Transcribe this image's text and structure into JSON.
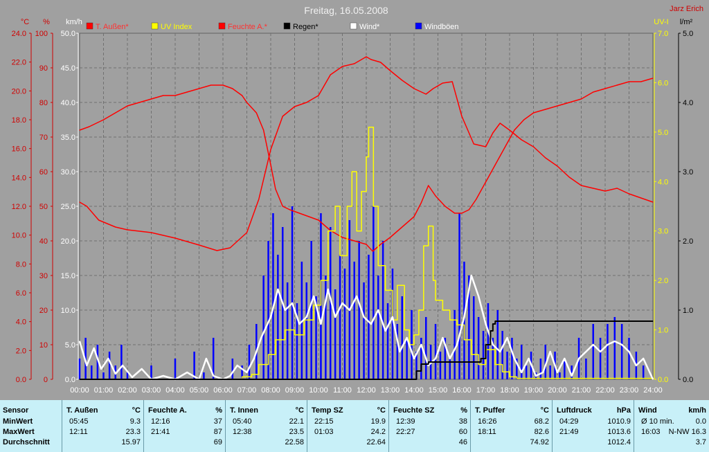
{
  "chart_data": {
    "type": "line",
    "title": "Freitag, 16.05.2008",
    "corner_label": "Jarz Erich",
    "x_ticks": [
      "00:00",
      "01:00",
      "02:00",
      "03:00",
      "04:00",
      "05:00",
      "06:00",
      "07:00",
      "08:00",
      "09:00",
      "10:00",
      "11:00",
      "12:00",
      "13:00",
      "14:00",
      "15:00",
      "16:00",
      "17:00",
      "18:00",
      "19:00",
      "20:00",
      "21:00",
      "22:00",
      "23:00",
      "24:00"
    ],
    "x_range": [
      0,
      24
    ],
    "axes": [
      {
        "id": "temp",
        "unit": "°C",
        "range": [
          0,
          25
        ],
        "ticks": [
          "0.0",
          "2.0",
          "4.0",
          "6.0",
          "8.0",
          "10.0",
          "12.0",
          "14.0",
          "16.0",
          "18.0",
          "20.0",
          "22.0",
          "24.0"
        ],
        "color": "#d00000"
      },
      {
        "id": "pct",
        "unit": "%",
        "range": [
          0,
          100
        ],
        "ticks": [
          "0",
          "10",
          "20",
          "30",
          "40",
          "50",
          "60",
          "70",
          "80",
          "90",
          "100"
        ],
        "color": "#d00000"
      },
      {
        "id": "wind",
        "unit": "km/h",
        "range": [
          0,
          50
        ],
        "ticks": [
          "0.0",
          "5.0",
          "10.0",
          "15.0",
          "20.0",
          "25.0",
          "30.0",
          "35.0",
          "40.0",
          "45.0",
          "50.0"
        ],
        "color": "#ffffff"
      },
      {
        "id": "uv",
        "unit": "UV-I",
        "range": [
          0,
          7
        ],
        "ticks": [
          "0.0",
          "1.0",
          "2.0",
          "3.0",
          "4.0",
          "5.0",
          "6.0",
          "7.0"
        ],
        "color": "#ffff00"
      },
      {
        "id": "rain",
        "unit": "l/m²",
        "range": [
          0,
          5
        ],
        "ticks": [
          "0.0",
          "1.0",
          "2.0",
          "3.0",
          "4.0",
          "5.0"
        ],
        "color": "#000000"
      }
    ],
    "legend": [
      {
        "label": "T. Außen*",
        "color": "#ff0000",
        "text_color": "#ff3030"
      },
      {
        "label": "UV Index",
        "color": "#ffff00",
        "text_color": "#ffff00"
      },
      {
        "label": "Feuchte A.*",
        "color": "#ff0000",
        "text_color": "#ff3030"
      },
      {
        "label": "Regen*",
        "color": "#000000",
        "text_color": "#000000"
      },
      {
        "label": "Wind*",
        "color": "#ffffff",
        "text_color": "#ffffff"
      },
      {
        "label": "Windböen",
        "color": "#0000ff",
        "text_color": "#ffffff"
      }
    ],
    "series": [
      {
        "name": "T. Außen*",
        "axis": "temp",
        "color": "#ff0000",
        "style": "line",
        "x": [
          0,
          0.3,
          0.8,
          1.5,
          2,
          3,
          4,
          5,
          5.75,
          6.3,
          7,
          7.5,
          8,
          8.5,
          9,
          9.5,
          10,
          10.5,
          11,
          11.5,
          12,
          12.2,
          12.6,
          13,
          13.5,
          14,
          14.5,
          14.8,
          15.2,
          15.6,
          16,
          16.5,
          17,
          17.3,
          17.6,
          18,
          18.5,
          19,
          19.5,
          20,
          20.5,
          21,
          21.5,
          22,
          22.5,
          23,
          23.5,
          24
        ],
        "y": [
          12.8,
          12.5,
          11.5,
          11.0,
          10.8,
          10.6,
          10.2,
          9.7,
          9.3,
          9.5,
          10.6,
          13.0,
          16.6,
          19.0,
          19.7,
          20.0,
          20.5,
          22.0,
          22.6,
          22.8,
          23.3,
          23.1,
          22.9,
          22.3,
          21.6,
          21.0,
          20.6,
          21.0,
          21.4,
          21.5,
          19.0,
          17.0,
          16.8,
          17.8,
          18.5,
          18.0,
          17.3,
          16.8,
          16.0,
          15.4,
          14.6,
          14.0,
          13.8,
          13.6,
          13.8,
          13.4,
          13.1,
          12.8
        ]
      },
      {
        "name": "UV Index",
        "axis": "uv",
        "color": "#ffff00",
        "style": "step",
        "x": [
          0,
          6.8,
          7.2,
          7.5,
          7.9,
          8.2,
          8.6,
          9.0,
          9.4,
          9.8,
          10.1,
          10.4,
          10.7,
          10.9,
          11.2,
          11.4,
          11.6,
          11.8,
          12.0,
          12.1,
          12.3,
          12.5,
          12.8,
          13.1,
          13.3,
          13.6,
          13.8,
          14.0,
          14.2,
          14.4,
          14.6,
          14.8,
          14.9,
          15.2,
          15.5,
          15.8,
          16.1,
          16.4,
          16.7,
          17.0,
          17.4,
          17.7,
          18.0,
          18.3,
          24
        ],
        "y": [
          0,
          0.05,
          0.1,
          0.3,
          0.5,
          0.8,
          1.0,
          0.9,
          1.2,
          1.5,
          2.0,
          3.0,
          3.5,
          2.5,
          3.5,
          4.2,
          3.0,
          3.8,
          4.5,
          5.1,
          3.5,
          2.3,
          1.8,
          1.2,
          1.9,
          1.0,
          0.7,
          0.9,
          1.4,
          2.7,
          3.1,
          2.0,
          1.6,
          1.4,
          1.2,
          1.1,
          0.8,
          0.5,
          0.3,
          0.6,
          0.3,
          0.15,
          0.05,
          0.02,
          0
        ]
      },
      {
        "name": "Feuchte A.*",
        "axis": "pct",
        "color": "#ff0000",
        "style": "line",
        "x": [
          0,
          0.4,
          1,
          1.5,
          2,
          2.5,
          3,
          3.5,
          4,
          4.5,
          5,
          5.5,
          6,
          6.4,
          6.8,
          7,
          7.4,
          7.7,
          8,
          8.2,
          8.5,
          8.8,
          9.2,
          9.6,
          10,
          10.5,
          11,
          11.5,
          12,
          12.27,
          12.6,
          13,
          13.5,
          14,
          14.3,
          14.6,
          14.9,
          15.3,
          15.7,
          16.0,
          16.3,
          16.6,
          17,
          17.4,
          17.8,
          18.2,
          18.6,
          19,
          19.5,
          20,
          20.5,
          21,
          21.5,
          22,
          22.5,
          23,
          23.5,
          24
        ],
        "y": [
          72,
          73,
          75,
          77,
          79,
          80,
          81,
          82,
          82,
          83,
          84,
          85,
          85,
          84,
          82,
          80,
          77,
          72,
          62,
          55,
          50,
          49,
          48,
          47,
          46,
          43,
          41,
          40,
          39,
          37,
          39,
          41,
          44,
          47,
          51,
          56,
          53,
          50,
          48,
          48,
          49,
          52,
          57,
          62,
          67,
          72,
          75,
          77,
          78,
          79,
          80,
          81,
          83,
          84,
          85,
          86,
          86,
          87
        ]
      },
      {
        "name": "Regen*",
        "axis": "rain",
        "color": "#000000",
        "style": "step",
        "x": [
          0,
          14.1,
          14.3,
          14.6,
          15.0,
          15.5,
          16.0,
          16.5,
          16.8,
          17.0,
          17.2,
          17.3,
          17.4,
          24
        ],
        "y": [
          0,
          0.12,
          0.22,
          0.25,
          0.25,
          0.25,
          0.25,
          0.25,
          0.3,
          0.5,
          0.7,
          0.8,
          0.84,
          0.84
        ]
      },
      {
        "name": "Wind*",
        "axis": "wind",
        "color": "#ffffff",
        "style": "line",
        "x": [
          0,
          0.3,
          0.6,
          0.9,
          1.2,
          1.5,
          1.8,
          2.2,
          2.6,
          3.0,
          3.5,
          4.0,
          4.5,
          5.0,
          5.3,
          5.6,
          6.0,
          6.3,
          6.6,
          7.0,
          7.3,
          7.6,
          8.0,
          8.3,
          8.6,
          8.9,
          9.2,
          9.5,
          9.8,
          10.1,
          10.4,
          10.7,
          11.0,
          11.3,
          11.6,
          11.9,
          12.2,
          12.5,
          12.8,
          13.1,
          13.4,
          13.7,
          14.0,
          14.3,
          14.6,
          14.9,
          15.2,
          15.5,
          15.8,
          16.1,
          16.4,
          16.7,
          17.0,
          17.3,
          17.6,
          17.9,
          18.2,
          18.5,
          18.8,
          19.1,
          19.4,
          19.7,
          20.0,
          20.3,
          20.6,
          20.9,
          21.2,
          21.5,
          21.8,
          22.1,
          22.4,
          22.7,
          23.0,
          23.3,
          23.6,
          24
        ],
        "y": [
          5.5,
          2,
          4.5,
          1.5,
          3,
          0.8,
          2,
          0.3,
          1.5,
          0,
          0.5,
          0,
          1,
          0,
          3,
          0.5,
          0,
          0.5,
          2,
          1,
          3,
          6,
          9,
          13,
          10,
          11,
          8,
          9,
          12,
          8,
          13,
          9,
          11,
          10,
          12,
          9,
          8,
          10,
          7,
          9,
          4,
          6,
          3,
          5,
          2,
          3,
          6,
          3,
          5,
          9,
          15,
          12,
          8,
          5,
          4,
          6,
          3,
          1,
          3,
          0.5,
          1,
          4,
          1,
          3,
          0.5,
          3,
          4,
          5,
          4,
          5,
          5.5,
          5,
          4,
          2,
          3,
          0
        ]
      },
      {
        "name": "Windböen",
        "axis": "wind",
        "color": "#0000ff",
        "style": "spikes",
        "x": [
          0,
          0.25,
          0.5,
          0.75,
          1,
          1.25,
          1.5,
          1.75,
          2,
          2.5,
          3,
          3.5,
          4,
          4.5,
          4.8,
          5.2,
          5.6,
          6,
          6.4,
          6.8,
          7.1,
          7.4,
          7.7,
          7.9,
          8.1,
          8.3,
          8.5,
          8.7,
          8.9,
          9.1,
          9.3,
          9.5,
          9.7,
          9.9,
          10.1,
          10.3,
          10.5,
          10.7,
          10.9,
          11.1,
          11.3,
          11.5,
          11.7,
          11.9,
          12.1,
          12.3,
          12.5,
          12.7,
          12.9,
          13.1,
          13.3,
          13.5,
          13.7,
          13.9,
          14.1,
          14.3,
          14.5,
          14.7,
          14.9,
          15.1,
          15.3,
          15.5,
          15.7,
          15.9,
          16.1,
          16.3,
          16.5,
          16.7,
          16.9,
          17.1,
          17.3,
          17.5,
          17.7,
          17.9,
          18.1,
          18.3,
          18.5,
          18.7,
          18.9,
          19.1,
          19.3,
          19.5,
          19.7,
          19.9,
          20.1,
          20.3,
          20.6,
          20.9,
          21.2,
          21.5,
          21.8,
          22.1,
          22.4,
          22.7,
          23.0,
          23.3,
          23.6,
          24
        ],
        "y": [
          3,
          6,
          2,
          5,
          1,
          4,
          2,
          5,
          1,
          0,
          2,
          0,
          3,
          0,
          4,
          1,
          6,
          0,
          3,
          2,
          5,
          8,
          15,
          20,
          24,
          18,
          22,
          14,
          25,
          11,
          17,
          14,
          20,
          12,
          24,
          15,
          22,
          13,
          18,
          16,
          23,
          17,
          20,
          14,
          18,
          25,
          15,
          20,
          11,
          16,
          8,
          12,
          6,
          10,
          4,
          6,
          9,
          5,
          8,
          4,
          6,
          3,
          10,
          24,
          17,
          15,
          12,
          9,
          7,
          11,
          6,
          10,
          7,
          4,
          6,
          3,
          5,
          2,
          4,
          1,
          3,
          5,
          2,
          4,
          1,
          3,
          2,
          6,
          3,
          8,
          6,
          8,
          9,
          8,
          6,
          4,
          2,
          0
        ]
      }
    ],
    "grid": true,
    "legend_position": "top"
  },
  "stats": {
    "row_labels": {
      "min": "MinWert",
      "max": "MaxWert",
      "avg": "Durchschnitt"
    },
    "sensor_header": "Sensor",
    "columns": [
      {
        "name": "T. Außen",
        "unit": "°C",
        "min_time": "05:45",
        "min_val": "9.3",
        "max_time": "12:11",
        "max_val": "23.3",
        "avg": "15.97"
      },
      {
        "name": "Feuchte A.",
        "unit": "%",
        "min_time": "12:16",
        "min_val": "37",
        "max_time": "21:41",
        "max_val": "87",
        "avg": "69"
      },
      {
        "name": "T. Innen",
        "unit": "°C",
        "min_time": "05:40",
        "min_val": "22.1",
        "max_time": "12:38",
        "max_val": "23.5",
        "avg": "22.58"
      },
      {
        "name": "Temp SZ",
        "unit": "°C",
        "min_time": "22:15",
        "min_val": "19.9",
        "max_time": "01:03",
        "max_val": "24.2",
        "avg": "22.64"
      },
      {
        "name": "Feuchte SZ",
        "unit": "%",
        "min_time": "12:39",
        "min_val": "38",
        "max_time": "22:27",
        "max_val": "60",
        "avg": "46"
      },
      {
        "name": "T. Puffer",
        "unit": "°C",
        "min_time": "16:26",
        "min_val": "68.2",
        "max_time": "18:11",
        "max_val": "82.6",
        "avg": "74.92"
      },
      {
        "name": "Luftdruck",
        "unit": "hPa",
        "min_time": "04:29",
        "min_val": "1010.9",
        "max_time": "21:49",
        "max_val": "1013.6",
        "avg": "1012.4"
      },
      {
        "name": "Wind",
        "unit": "km/h",
        "min_time": "Ø 10 min.",
        "min_val": "0.0",
        "max_time": "16:03",
        "max_val": "N-NW 16.3",
        "avg": "3.7"
      }
    ]
  }
}
